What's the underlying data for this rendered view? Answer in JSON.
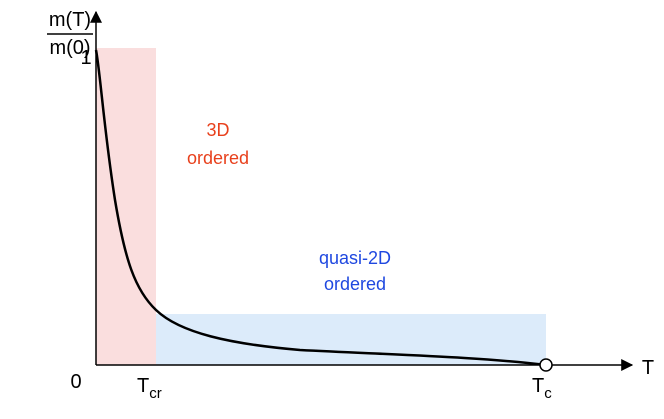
{
  "y_axis_label": {
    "numerator": "m(T)",
    "denominator": "m(0)"
  },
  "y_tick_top": "1",
  "origin_label": "0",
  "x_axis_label": "T",
  "t_cr": {
    "main": "T",
    "sub": "cr"
  },
  "t_c": {
    "main": "T",
    "sub": "c"
  },
  "region_3d": {
    "line1": "3D",
    "line2": "ordered"
  },
  "region_2d": {
    "line1": "quasi-2D",
    "line2": "ordered"
  }
}
